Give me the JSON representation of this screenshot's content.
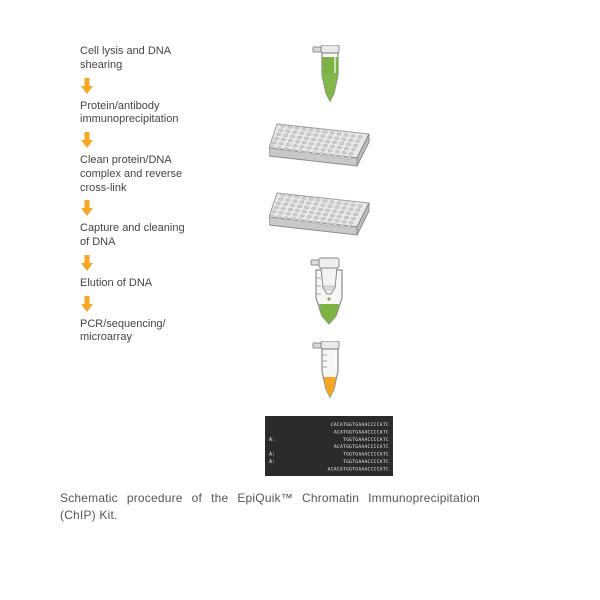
{
  "steps": [
    {
      "label": "Cell lysis and DNA\nshearing"
    },
    {
      "label": "Protein/antibody\nimmunoprecipitation"
    },
    {
      "label": "Clean protein/DNA\ncomplex and reverse\ncross-link"
    },
    {
      "label": "Capture and cleaning\nof DNA"
    },
    {
      "label": "Elution of DNA"
    },
    {
      "label": "PCR/sequencing/\nmicroarray"
    }
  ],
  "caption": "Schematic procedure of the EpiQuik™ Chromatin Immunoprecipitation (ChIP) Kit.",
  "colors": {
    "arrow": "#f5a623",
    "tube_outline": "#8a8a8a",
    "tube_green": "#7cb342",
    "tube_orange": "#f5a623",
    "plate_fill": "#e8e8e8",
    "plate_side": "#bdbdbd",
    "seq_bg": "#2b2b2b",
    "seq_text": "#eeeeee"
  },
  "seq_lines": [
    "CACATGGTGAAACCCCATC",
    "ACATGGTGAAACCCCATC",
    "TGGTGAAACCCCATC",
    "ACATGGTGAAACCCCATC",
    "TGGTGAAACCCCATC",
    "TGGTGAAACCCCATC",
    "ACACATGGTGAAACCCCATC"
  ],
  "seq_alleles": [
    "",
    "",
    "A:",
    "",
    "A:",
    "A:",
    ""
  ],
  "label_fontsize": 11,
  "arrow_w": 14,
  "arrow_h": 16
}
